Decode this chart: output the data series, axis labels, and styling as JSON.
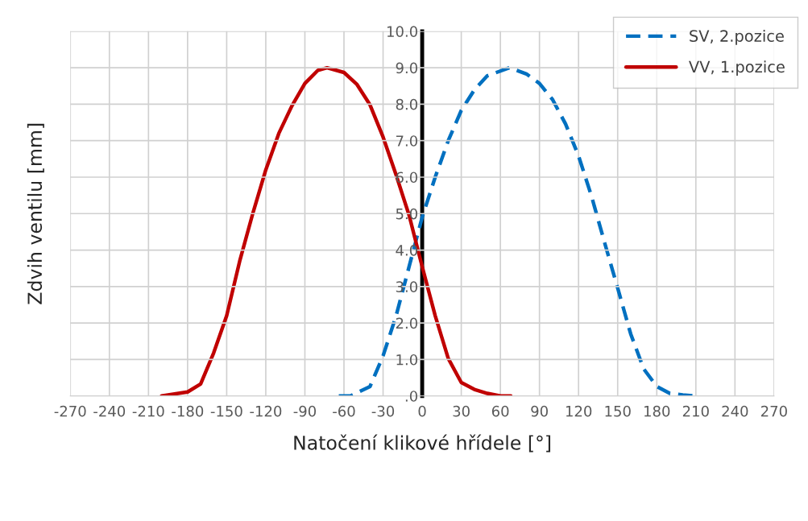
{
  "chart_data": {
    "type": "line",
    "xlabel": "Natočení klikové hřídele [°]",
    "ylabel": "Zdvih ventilu [mm]",
    "xlim": [
      -270,
      270
    ],
    "xticks": [
      -270,
      -240,
      -210,
      -180,
      -150,
      -120,
      -90,
      -60,
      -30,
      0,
      30,
      60,
      90,
      120,
      150,
      180,
      210,
      240,
      270
    ],
    "ylim": [
      0,
      10
    ],
    "yticks": [
      {
        "value": 0,
        "label": ".0"
      },
      {
        "value": 1,
        "label": "1.0"
      },
      {
        "value": 2,
        "label": "2.0"
      },
      {
        "value": 3,
        "label": "3.0"
      },
      {
        "value": 4,
        "label": "4.0"
      },
      {
        "value": 5,
        "label": "5.0"
      },
      {
        "value": 6,
        "label": "6.0"
      },
      {
        "value": 7,
        "label": "7.0"
      },
      {
        "value": 8,
        "label": "8.0"
      },
      {
        "value": 9,
        "label": "9.0"
      },
      {
        "value": 10,
        "label": "10.0"
      }
    ],
    "grid": true,
    "legend": "top right",
    "series": [
      {
        "name": "SV, 2.pozice",
        "color": "#0070c0",
        "line_style": "dashed",
        "x": [
          -64,
          -55,
          -40,
          -30,
          -20,
          -10,
          0,
          10,
          20,
          30,
          40,
          50,
          67,
          80,
          90,
          100,
          110,
          120,
          130,
          140,
          150,
          160,
          170,
          180,
          190,
          200,
          210
        ],
        "values": [
          0,
          0,
          0.26,
          1.1,
          2.2,
          3.55,
          4.9,
          6.0,
          7.0,
          7.83,
          8.39,
          8.78,
          9.0,
          8.83,
          8.57,
          8.13,
          7.46,
          6.58,
          5.47,
          4.2,
          2.96,
          1.7,
          0.74,
          0.26,
          0.07,
          0.03,
          0
        ]
      },
      {
        "name": "VV, 1.pozice",
        "color": "#c00000",
        "line_style": "solid",
        "x": [
          -200,
          -180,
          -170,
          -160,
          -150,
          -140,
          -130,
          -120,
          -110,
          -100,
          -90,
          -80,
          -73,
          -60,
          -50,
          -40,
          -30,
          -20,
          -10,
          0,
          10,
          20,
          30,
          40,
          50,
          60,
          68
        ],
        "values": [
          0,
          0.11,
          0.33,
          1.18,
          2.2,
          3.7,
          5.0,
          6.2,
          7.2,
          7.95,
          8.57,
          8.93,
          9.0,
          8.87,
          8.54,
          7.98,
          7.1,
          6.06,
          4.95,
          3.55,
          2.2,
          1.03,
          0.37,
          0.18,
          0.07,
          0,
          0
        ]
      }
    ]
  }
}
